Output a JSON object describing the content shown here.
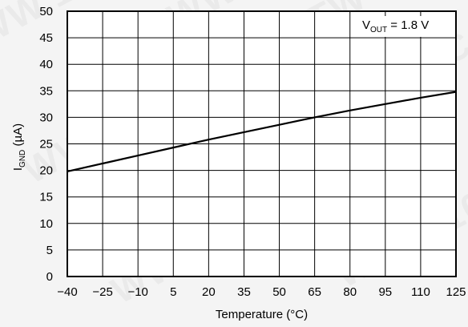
{
  "chart_data": {
    "type": "line",
    "x_ticks": [
      -40,
      -25,
      -10,
      5,
      20,
      35,
      50,
      65,
      80,
      95,
      110,
      125
    ],
    "y_ticks": [
      0,
      5,
      10,
      15,
      20,
      25,
      30,
      35,
      40,
      45,
      50
    ],
    "x_tick_labels": [
      "−40",
      "−25",
      "−10",
      "5",
      "20",
      "35",
      "50",
      "65",
      "80",
      "95",
      "110",
      "125"
    ],
    "y_tick_labels": [
      "0",
      "5",
      "10",
      "15",
      "20",
      "25",
      "30",
      "35",
      "40",
      "45",
      "50"
    ],
    "xlim": [
      -40,
      125
    ],
    "ylim": [
      0,
      50
    ],
    "xlabel": "Temperature (°C)",
    "ylabel": {
      "main": "I",
      "subscript": "GND",
      "unit": " (µA)"
    },
    "grid": true,
    "annotation": {
      "main": "V",
      "subscript": "OUT",
      "rest": " = 1.8 V"
    },
    "series": [
      {
        "x": [
          -40,
          -25,
          -10,
          5,
          20,
          35,
          50,
          65,
          80,
          95,
          110,
          125
        ],
        "y": [
          19.8,
          21.3,
          22.8,
          24.3,
          25.8,
          27.2,
          28.6,
          30.0,
          31.3,
          32.5,
          33.7,
          34.8
        ]
      }
    ]
  },
  "watermark": "WWW.100Y.COM.TW"
}
